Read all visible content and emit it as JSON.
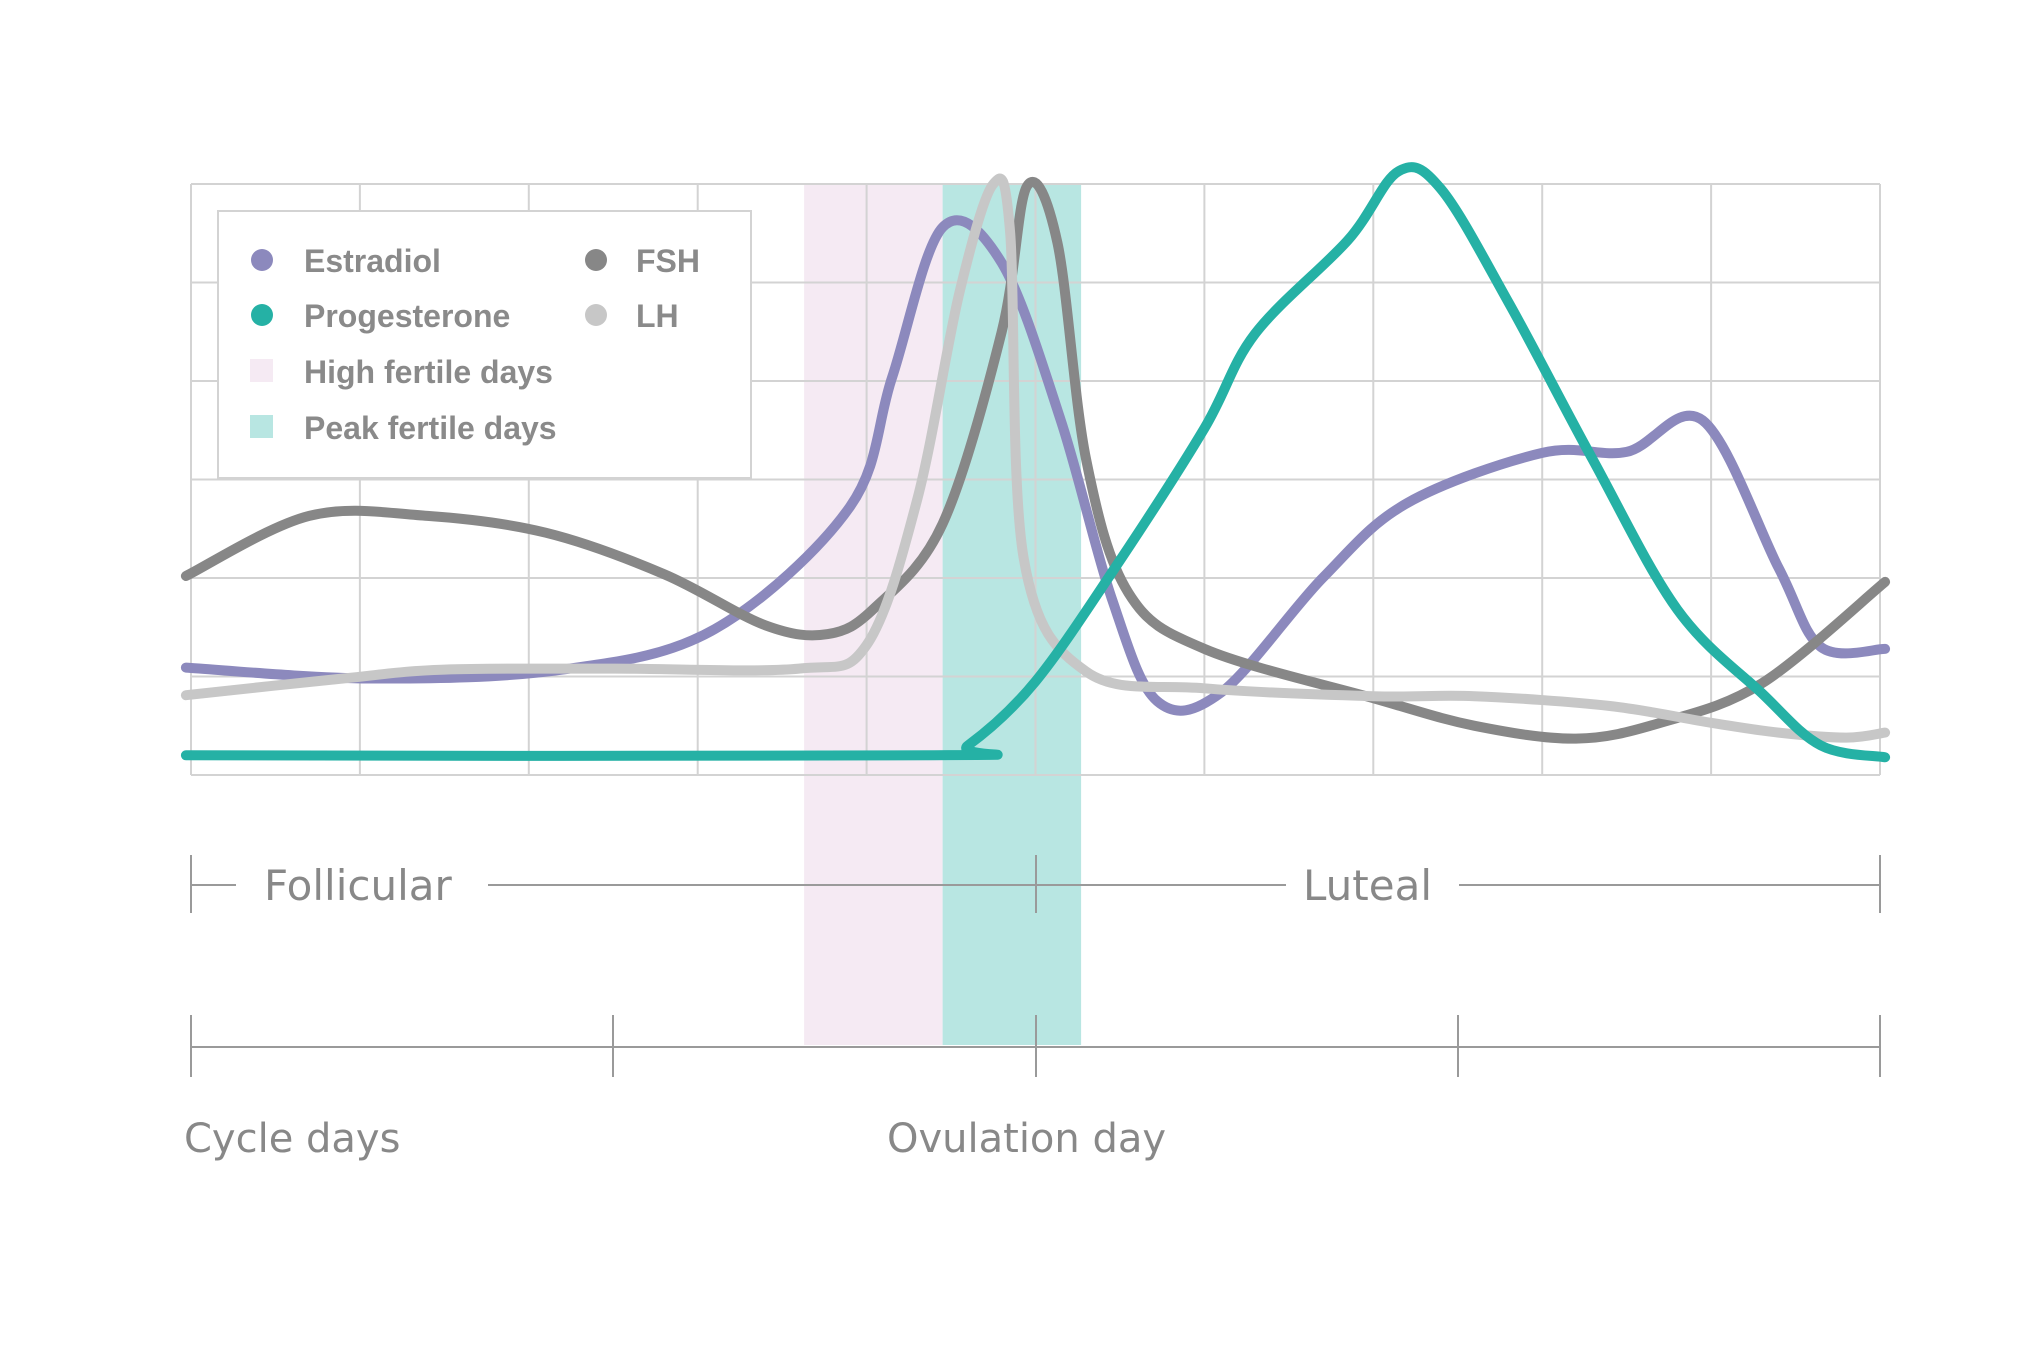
{
  "chart_data": {
    "type": "line",
    "title": "",
    "xlabel": "Cycle days",
    "ylabel": "",
    "x_marker_label": "Ovulation day",
    "xlim": [
      0,
      10
    ],
    "ylim": [
      0,
      6
    ],
    "grid": true,
    "legend_placement": "top-left",
    "phases": [
      {
        "label": "Follicular",
        "start": 0,
        "end": 5
      },
      {
        "label": "Luteal",
        "start": 5,
        "end": 10
      }
    ],
    "bands": [
      {
        "name": "High fertile days",
        "start": 3.63,
        "end": 4.45,
        "color": "#f5eaf3"
      },
      {
        "name": "Peak fertile days",
        "start": 4.45,
        "end": 5.27,
        "color": "#b8e6e2"
      }
    ],
    "series": [
      {
        "name": "Estradiol",
        "color": "#8c89bd",
        "points": [
          [
            -0.03,
            1.09
          ],
          [
            1.06,
            0.98
          ],
          [
            2.2,
            1.07
          ],
          [
            3.1,
            1.48
          ],
          [
            3.9,
            2.72
          ],
          [
            4.15,
            4.03
          ],
          [
            4.45,
            5.56
          ],
          [
            4.8,
            5.2
          ],
          [
            5.15,
            3.6
          ],
          [
            5.45,
            1.8
          ],
          [
            5.72,
            0.75
          ],
          [
            6.1,
            0.84
          ],
          [
            6.7,
            2.0
          ],
          [
            7.2,
            2.76
          ],
          [
            8.0,
            3.27
          ],
          [
            8.5,
            3.28
          ],
          [
            8.95,
            3.6
          ],
          [
            9.4,
            2.1
          ],
          [
            9.65,
            1.3
          ],
          [
            10.03,
            1.28
          ]
        ]
      },
      {
        "name": "FSH",
        "color": "#878787",
        "points": [
          [
            -0.03,
            2.02
          ],
          [
            0.7,
            2.63
          ],
          [
            1.4,
            2.63
          ],
          [
            2.1,
            2.46
          ],
          [
            2.8,
            2.04
          ],
          [
            3.4,
            1.52
          ],
          [
            3.77,
            1.43
          ],
          [
            4.05,
            1.7
          ],
          [
            4.45,
            2.55
          ],
          [
            4.8,
            4.5
          ],
          [
            4.95,
            5.98
          ],
          [
            5.13,
            5.4
          ],
          [
            5.3,
            3.2
          ],
          [
            5.55,
            1.85
          ],
          [
            6.0,
            1.28
          ],
          [
            7.0,
            0.78
          ],
          [
            7.6,
            0.5
          ],
          [
            8.2,
            0.37
          ],
          [
            8.7,
            0.53
          ],
          [
            9.3,
            0.93
          ],
          [
            10.03,
            1.96
          ]
        ]
      },
      {
        "name": "LH",
        "color": "#c7c7c7",
        "points": [
          [
            -0.03,
            0.81
          ],
          [
            0.9,
            0.98
          ],
          [
            1.5,
            1.07
          ],
          [
            2.5,
            1.08
          ],
          [
            3.6,
            1.08
          ],
          [
            4.0,
            1.32
          ],
          [
            4.3,
            2.8
          ],
          [
            4.55,
            4.9
          ],
          [
            4.75,
            6.0
          ],
          [
            4.85,
            5.5
          ],
          [
            4.93,
            2.2
          ],
          [
            5.3,
            1.05
          ],
          [
            6.0,
            0.88
          ],
          [
            7.0,
            0.8
          ],
          [
            7.6,
            0.8
          ],
          [
            8.4,
            0.7
          ],
          [
            9.0,
            0.53
          ],
          [
            9.4,
            0.43
          ],
          [
            9.8,
            0.38
          ],
          [
            10.03,
            0.43
          ]
        ]
      },
      {
        "name": "Progesterone",
        "color": "#25b1a5",
        "points": [
          [
            -0.03,
            0.2
          ],
          [
            4.4,
            0.2
          ],
          [
            4.6,
            0.3
          ],
          [
            5.0,
            0.95
          ],
          [
            5.5,
            2.18
          ],
          [
            6.0,
            3.52
          ],
          [
            6.3,
            4.48
          ],
          [
            6.85,
            5.43
          ],
          [
            7.15,
            6.13
          ],
          [
            7.4,
            5.95
          ],
          [
            7.8,
            4.8
          ],
          [
            8.3,
            3.2
          ],
          [
            8.8,
            1.68
          ],
          [
            9.3,
            0.83
          ],
          [
            9.65,
            0.3
          ],
          [
            10.03,
            0.18
          ]
        ]
      }
    ],
    "legend": [
      {
        "label": "Estradiol",
        "marker": "circle",
        "color": "#8c89bd"
      },
      {
        "label": "FSH",
        "marker": "circle",
        "color": "#878787"
      },
      {
        "label": "Progesterone",
        "marker": "circle",
        "color": "#25b1a5"
      },
      {
        "label": "LH",
        "marker": "circle",
        "color": "#c7c7c7"
      },
      {
        "label": "High fertile days",
        "marker": "square",
        "color": "#f5eaf3"
      },
      {
        "label": "Peak fertile days",
        "marker": "square",
        "color": "#b8e6e2"
      }
    ]
  }
}
